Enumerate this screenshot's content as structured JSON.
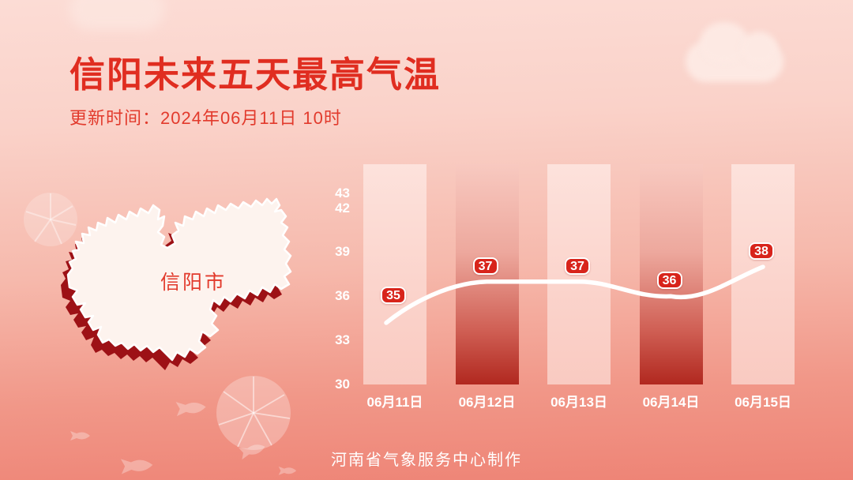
{
  "header": {
    "title": "信阳未来五天最高气温",
    "update_time": "更新时间：2024年06月11日 10时"
  },
  "map": {
    "label": "信阳市"
  },
  "footer": {
    "credit": "河南省气象服务中心制作"
  },
  "chart_data": {
    "type": "line",
    "title": "信阳未来五天最高气温",
    "categories": [
      "06月11日",
      "06月12日",
      "06月13日",
      "06月14日",
      "06月15日"
    ],
    "values": [
      35,
      37,
      37,
      36,
      38
    ],
    "y_ticks": [
      43,
      42,
      39,
      36,
      33,
      30
    ],
    "ylim": [
      30,
      43
    ],
    "xlabel": "",
    "ylabel": "",
    "grid": false,
    "legend_position": "none",
    "column_styles": [
      "light",
      "dark",
      "light",
      "dark",
      "light"
    ],
    "line_color": "#ffffff",
    "label_style": "red-badge"
  },
  "colors": {
    "title-red": "#e02d20",
    "subtitle-red": "#e23a2c",
    "badge-red": "#d8241b",
    "dark-bar-red": "#b1281f",
    "map-shadow-red": "#9d1116",
    "axis-white": "#ffffff"
  }
}
